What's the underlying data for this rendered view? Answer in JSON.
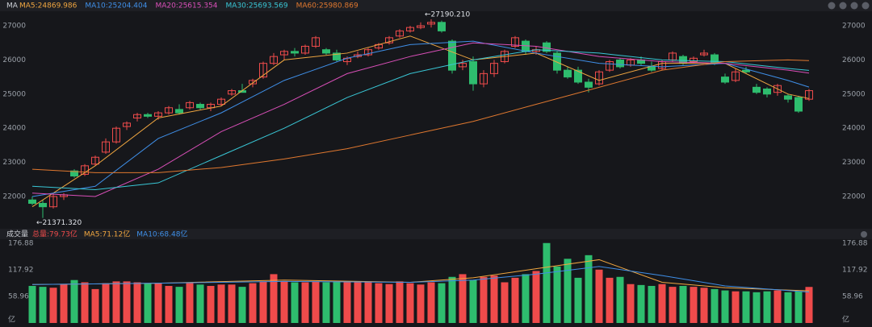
{
  "chart_data": [
    {
      "type": "candlestick",
      "title": "MA",
      "up_color": "#ef4b4b",
      "down_color": "#2ebd6e",
      "open": [
        21900,
        21800,
        21700,
        22000,
        22750,
        22650,
        22950,
        23300,
        23600,
        24050,
        24300,
        24400,
        24350,
        24450,
        24550,
        24600,
        24700,
        24600,
        24700,
        25000,
        25100,
        25300,
        25500,
        25900,
        26150,
        26250,
        26200,
        26400,
        26300,
        26200,
        25950,
        26100,
        26150,
        26350,
        26500,
        26700,
        26850,
        26950,
        27050,
        27100,
        26550,
        25800,
        25950,
        25300,
        25600,
        25950,
        26400,
        26550,
        26250,
        26500,
        26200,
        25700,
        25700,
        25350,
        25300,
        25700,
        26000,
        25850,
        26000,
        25800,
        25750,
        26000,
        26100,
        25950,
        26150,
        26150,
        25500,
        25400,
        25700,
        25200,
        25150,
        25050,
        24950,
        24900,
        24850
      ],
      "high": [
        22000,
        21900,
        22100,
        22100,
        22800,
        22950,
        23200,
        23700,
        24050,
        24200,
        24450,
        24450,
        24500,
        24650,
        24700,
        24800,
        24750,
        24750,
        24900,
        25150,
        25300,
        25450,
        25950,
        26200,
        26300,
        26350,
        26450,
        26700,
        26350,
        26300,
        26100,
        26250,
        26350,
        26500,
        26700,
        26900,
        27000,
        27100,
        27190.21,
        27150,
        26600,
        26000,
        26100,
        25700,
        26000,
        26300,
        26700,
        26600,
        26400,
        26550,
        26250,
        25800,
        25800,
        25450,
        25700,
        26000,
        26050,
        26050,
        26100,
        25950,
        26000,
        26250,
        26150,
        26100,
        26300,
        26200,
        25600,
        25750,
        25800,
        25300,
        25200,
        25300,
        25000,
        24950,
        25150
      ],
      "low": [
        21750,
        21371.32,
        21650,
        21900,
        22550,
        22600,
        22900,
        23250,
        23550,
        23950,
        24200,
        24300,
        24250,
        24400,
        24400,
        24550,
        24550,
        24500,
        24650,
        24950,
        25050,
        25200,
        25450,
        25850,
        26000,
        26100,
        26150,
        26350,
        26150,
        25950,
        25850,
        26050,
        26100,
        26300,
        26450,
        26650,
        26800,
        26900,
        26950,
        26800,
        25600,
        25700,
        25100,
        25200,
        25500,
        25900,
        26350,
        26150,
        26150,
        26200,
        25600,
        25450,
        25300,
        25050,
        25250,
        25650,
        25750,
        25800,
        25850,
        25650,
        25700,
        25950,
        25850,
        25900,
        26100,
        25850,
        25300,
        25350,
        25600,
        25000,
        24900,
        24950,
        24750,
        24450,
        24800
      ],
      "close": [
        21800,
        21700,
        22000,
        22050,
        22600,
        22900,
        23150,
        23600,
        24000,
        24150,
        24400,
        24350,
        24450,
        24600,
        24450,
        24750,
        24600,
        24700,
        24850,
        25100,
        25050,
        25400,
        25900,
        26100,
        26250,
        26200,
        26400,
        26650,
        26200,
        26000,
        26050,
        26150,
        26300,
        26450,
        26650,
        26850,
        26950,
        27000,
        27100,
        26850,
        25700,
        25900,
        25300,
        25600,
        25900,
        26250,
        26650,
        26250,
        26300,
        26250,
        25700,
        25500,
        25350,
        25200,
        25650,
        25950,
        25800,
        26000,
        25900,
        25700,
        25950,
        26200,
        25900,
        26050,
        26200,
        25900,
        25350,
        25650,
        25650,
        25050,
        25000,
        25250,
        24850,
        24500,
        25100
      ],
      "series": [
        {
          "name": "MA5:24869.986",
          "color": "#f0a640",
          "x": [
            0,
            6,
            12,
            18,
            24,
            30,
            36,
            42,
            48,
            54,
            60,
            66,
            72,
            74
          ],
          "values": [
            21700,
            22900,
            24300,
            24650,
            26000,
            26200,
            26700,
            26000,
            26200,
            25400,
            25900,
            25900,
            25000,
            24869.986
          ]
        },
        {
          "name": "MA10:25204.404",
          "color": "#3f8fe8",
          "x": [
            0,
            6,
            12,
            18,
            24,
            30,
            36,
            42,
            48,
            54,
            60,
            66,
            72,
            74
          ],
          "values": [
            22000,
            22300,
            23700,
            24450,
            25400,
            26050,
            26450,
            26550,
            26200,
            25900,
            25800,
            25900,
            25400,
            25204.404
          ]
        },
        {
          "name": "MA20:25615.354",
          "color": "#d94fb8",
          "x": [
            0,
            6,
            12,
            18,
            24,
            30,
            36,
            42,
            48,
            54,
            60,
            66,
            72,
            74
          ],
          "values": [
            22100,
            22000,
            22800,
            23900,
            24700,
            25600,
            26100,
            26500,
            26400,
            26100,
            25950,
            25900,
            25700,
            25615.354
          ]
        },
        {
          "name": "MA30:25693.569",
          "color": "#39c7d6",
          "x": [
            0,
            6,
            12,
            18,
            24,
            30,
            36,
            42,
            48,
            54,
            60,
            66,
            72,
            74
          ],
          "values": [
            22300,
            22200,
            22400,
            23200,
            24000,
            24900,
            25600,
            26000,
            26300,
            26200,
            26000,
            25950,
            25750,
            25693.569
          ]
        },
        {
          "name": "MA60:25980.869",
          "color": "#e0782f",
          "x": [
            0,
            6,
            12,
            18,
            24,
            30,
            36,
            42,
            48,
            54,
            60,
            66,
            72,
            74
          ],
          "values": [
            22800,
            22700,
            22700,
            22850,
            23100,
            23400,
            23800,
            24200,
            24700,
            25200,
            25700,
            25950,
            26000,
            25980.869
          ]
        }
      ],
      "annotations": [
        {
          "text": "←27190.210",
          "x": 38,
          "y": 27190.21
        },
        {
          "text": "←21371.320",
          "x": 1,
          "y": 21371.32
        }
      ],
      "ylim": [
        21080,
        27425
      ],
      "yticks": [
        22000,
        23000,
        24000,
        25000,
        26000,
        27000
      ]
    },
    {
      "type": "volume",
      "title": "成交量",
      "values": [
        82,
        80,
        78,
        86,
        95,
        90,
        75,
        88,
        92,
        92,
        90,
        88,
        88,
        82,
        80,
        90,
        85,
        82,
        85,
        85,
        80,
        88,
        92,
        108,
        92,
        90,
        90,
        92,
        90,
        92,
        92,
        92,
        90,
        88,
        86,
        92,
        88,
        85,
        90,
        88,
        102,
        108,
        95,
        102,
        105,
        90,
        100,
        108,
        115,
        176.88,
        125,
        142,
        100,
        150,
        118,
        100,
        102,
        86,
        84,
        82,
        86,
        80,
        82,
        80,
        78,
        75,
        72,
        70,
        70,
        68,
        70,
        72,
        68,
        70,
        79.73
      ],
      "series": [
        {
          "name": "总量:79.73亿",
          "color": "#ef4b4b"
        },
        {
          "name": "MA5:71.12亿",
          "color": "#f0a640",
          "x": [
            0,
            12,
            24,
            36,
            42,
            48,
            54,
            60,
            66,
            74
          ],
          "values": [
            85,
            88,
            95,
            90,
            100,
            120,
            140,
            90,
            78,
            71.12
          ]
        },
        {
          "name": "MA10:68.48亿",
          "color": "#3f8fe8",
          "x": [
            0,
            12,
            24,
            36,
            42,
            48,
            54,
            60,
            66,
            74
          ],
          "values": [
            85,
            88,
            92,
            90,
            95,
            108,
            125,
            105,
            82,
            68.48
          ]
        }
      ],
      "ylim": [
        0,
        180
      ],
      "yticks": [
        {
          "value": 0,
          "label": "亿"
        },
        58.96,
        117.92,
        176.88
      ]
    }
  ]
}
